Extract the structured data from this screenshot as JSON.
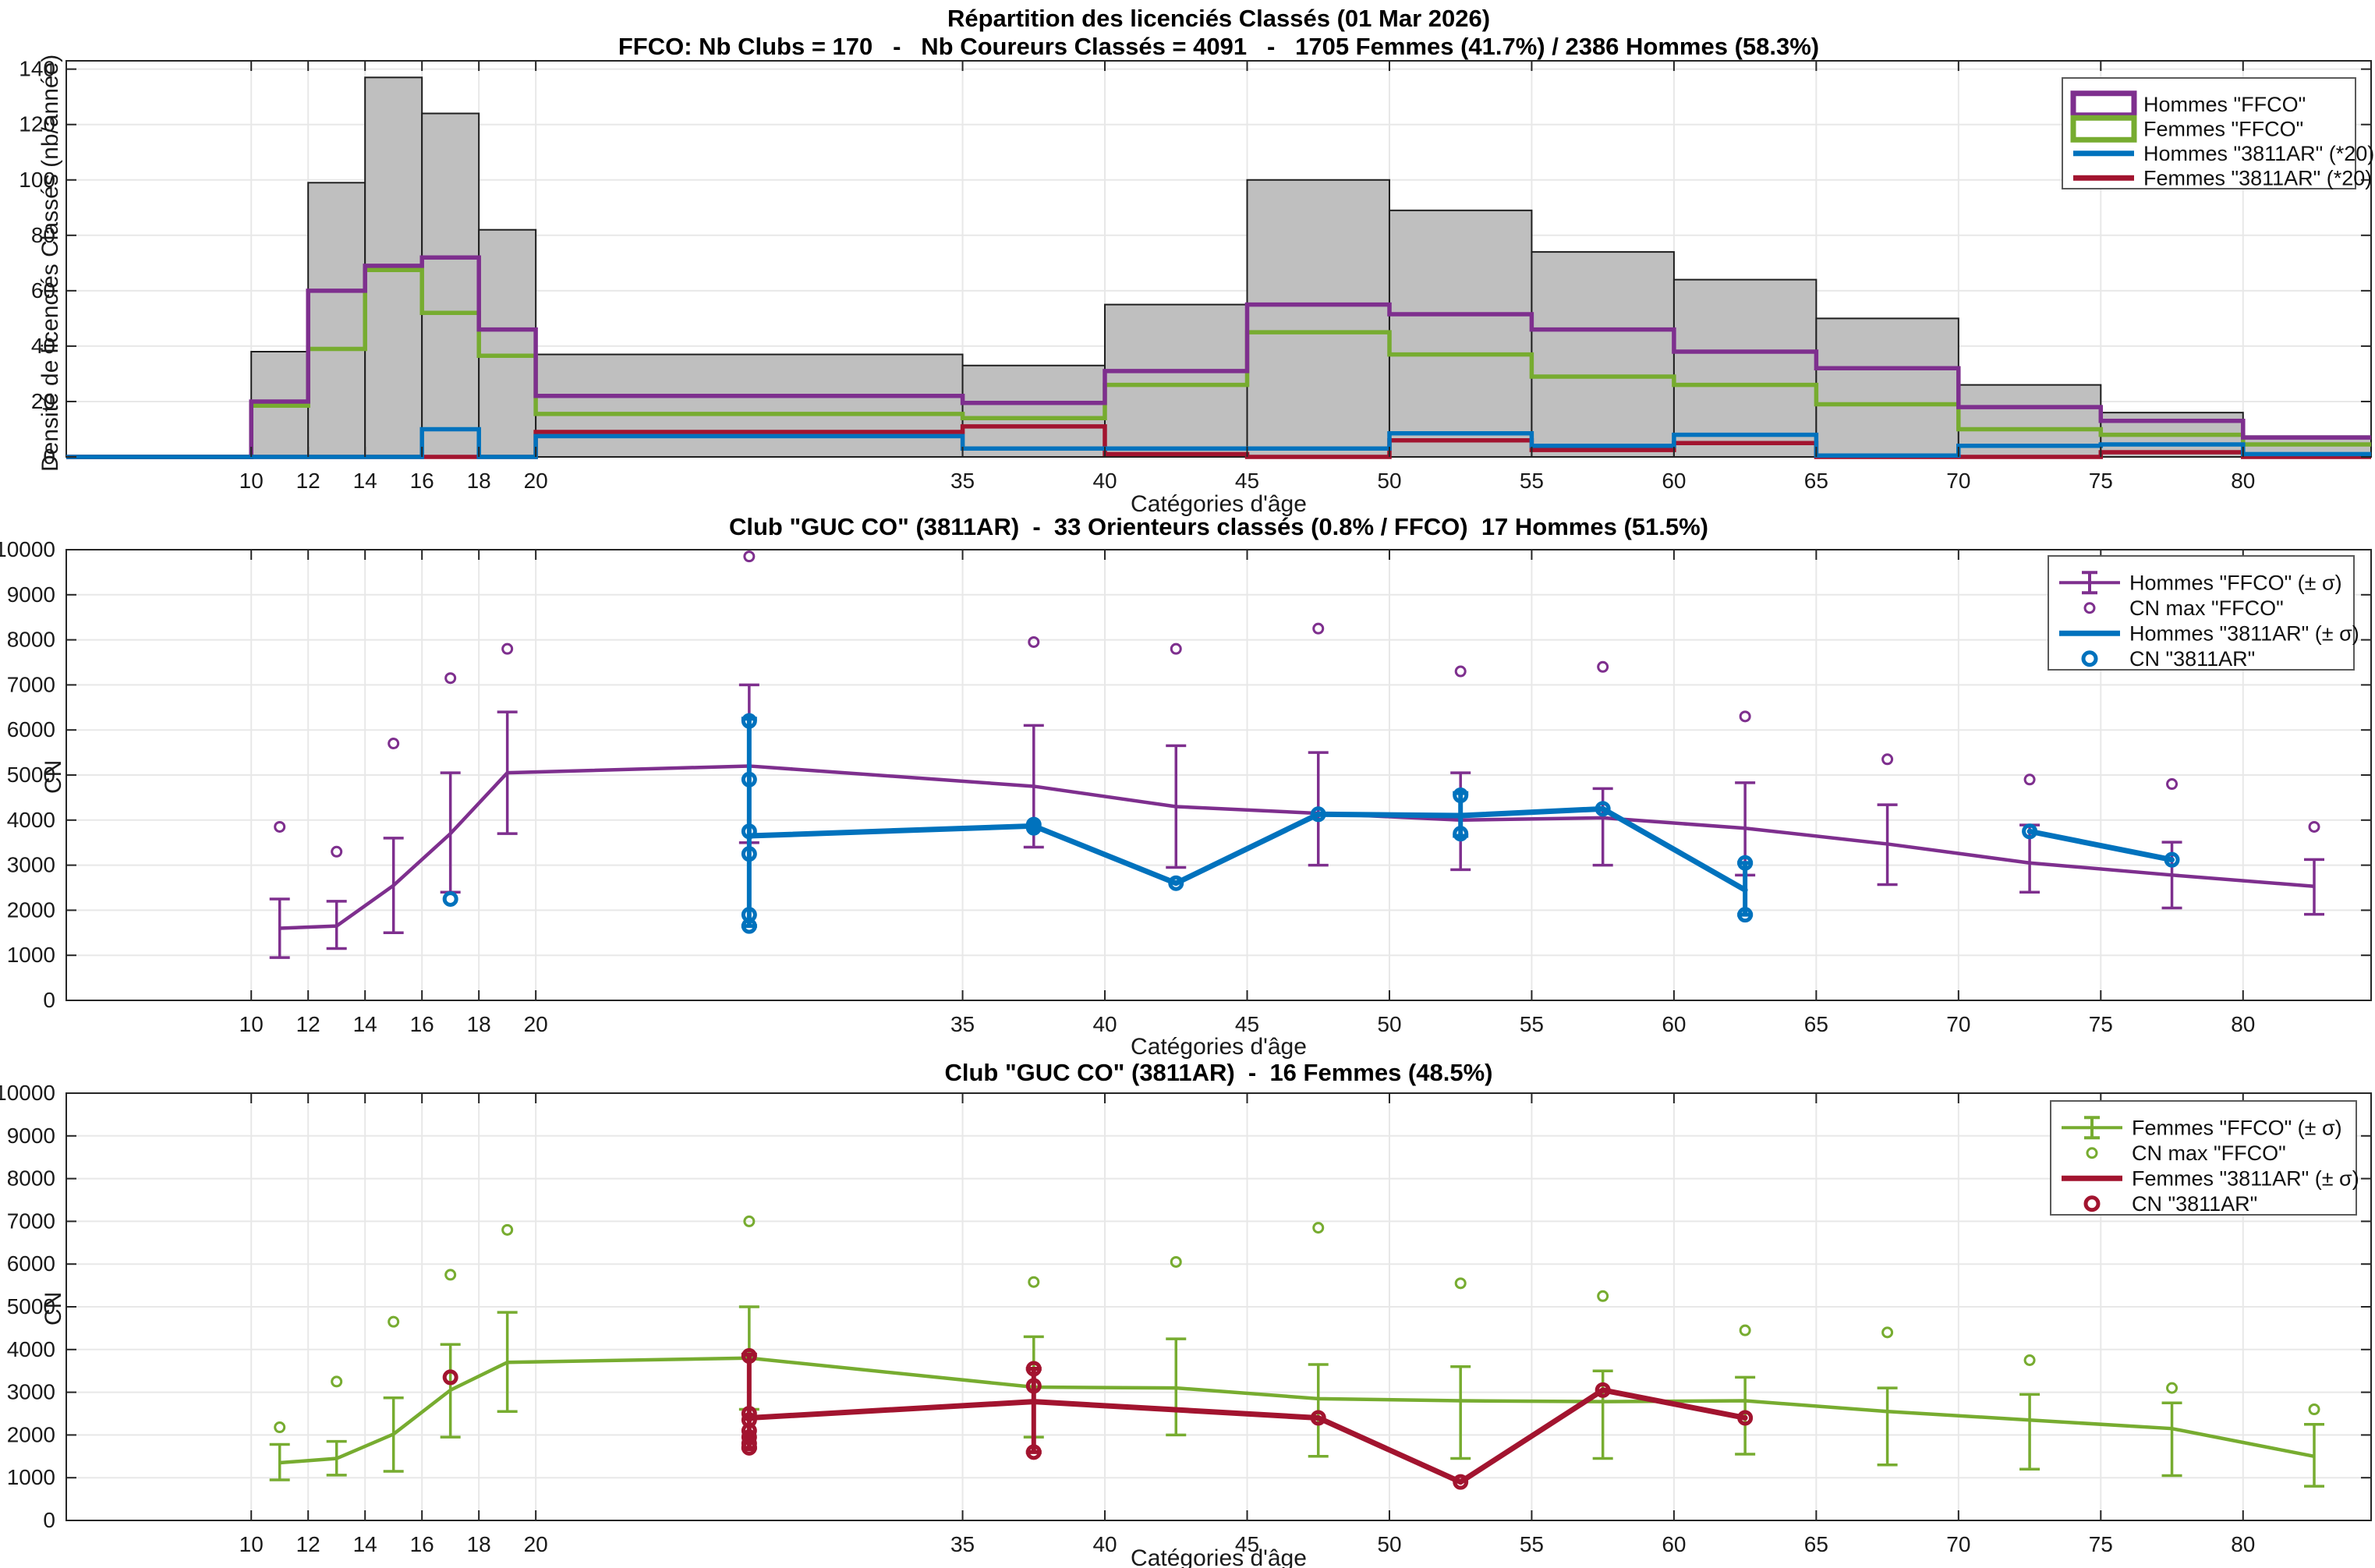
{
  "title": {
    "line1": "Répartition des licenciés Classés (01 Mar 2026)",
    "line2": "FFCO: Nb Clubs = 170   -   Nb Coureurs Classés = 4091   -   1705 Femmes (41.7%) / 2386 Hommes (58.3%)"
  },
  "colors": {
    "hommes_ffco": "#7E2F8E",
    "femmes_ffco": "#77AC30",
    "hommes_club": "#0072BD",
    "femmes_club": "#A2142F",
    "hist_fill": "#BFBFBF",
    "hist_edge": "#1F1F1F",
    "grid": "#E8E8E8",
    "axis": "#262626"
  },
  "xaxis": {
    "label": "Catégories d'âge",
    "ticks": [
      10,
      12,
      14,
      16,
      18,
      20,
      35,
      40,
      45,
      50,
      55,
      60,
      65,
      70,
      75,
      80
    ],
    "range": [
      3.5,
      84.5
    ]
  },
  "chart_data": [
    {
      "type": "bar",
      "title": "Répartition des licenciés Classés (01 Mar 2026)",
      "ylabel": "Densité de licenciés Classés (nb/année)",
      "ylim": [
        0,
        143
      ],
      "yticks": [
        0,
        20,
        40,
        60,
        80,
        100,
        120,
        140
      ],
      "bin_edges": [
        10,
        12,
        14,
        16,
        18,
        20,
        35,
        40,
        45,
        50,
        55,
        60,
        65,
        70,
        75,
        80,
        84.5
      ],
      "bars_total": [
        38,
        99,
        137,
        124,
        82,
        37,
        33,
        55,
        100,
        89,
        74,
        64,
        50,
        26,
        16,
        7.5
      ],
      "series": [
        {
          "name": "Femmes \"FFCO\"",
          "color": "femmes_ffco",
          "values": [
            18.5,
            39,
            67.5,
            52,
            36.5,
            15.5,
            14,
            26,
            45,
            37,
            29,
            26,
            19,
            10,
            8,
            4.5
          ]
        },
        {
          "name": "Hommes \"FFCO\"",
          "color": "hommes_ffco",
          "values": [
            20,
            60,
            69,
            72,
            46,
            22,
            19.5,
            31,
            55,
            51.5,
            46,
            38,
            32,
            18,
            13,
            7
          ]
        },
        {
          "name": "Femmes \"3811AR\" (*20)",
          "color": "femmes_club",
          "values": [
            0,
            0,
            0,
            0,
            0,
            9,
            11,
            1,
            0,
            6,
            2.5,
            5,
            0,
            0,
            1.7,
            0
          ]
        },
        {
          "name": "Hommes \"3811AR\" (*20)",
          "color": "hommes_club",
          "values": [
            0,
            0,
            0,
            10,
            0,
            7.5,
            3,
            3,
            3,
            8.5,
            4,
            8,
            0.5,
            4,
            4.5,
            1
          ]
        }
      ],
      "legend": [
        {
          "symbol": "rect",
          "color": "hommes_ffco",
          "label": "Hommes \"FFCO\""
        },
        {
          "symbol": "rect",
          "color": "femmes_ffco",
          "label": "Femmes \"FFCO\""
        },
        {
          "symbol": "line",
          "color": "hommes_club",
          "label": "Hommes \"3811AR\" (*20)"
        },
        {
          "symbol": "line",
          "color": "femmes_club",
          "label": "Femmes \"3811AR\" (*20)"
        }
      ]
    },
    {
      "type": "line",
      "title": "Club \"GUC CO\" (3811AR)  -  33 Orienteurs classés (0.8% / FFCO)  17 Hommes (51.5%)",
      "ylabel": "CN",
      "ylim": [
        0,
        10000
      ],
      "yticks": [
        0,
        1000,
        2000,
        3000,
        4000,
        5000,
        6000,
        7000,
        8000,
        9000,
        10000
      ],
      "x": [
        11,
        13,
        15,
        17,
        19,
        27.5,
        37.5,
        42.5,
        47.5,
        52.5,
        57.5,
        62.5,
        67.5,
        72.5,
        77.5,
        82.5
      ],
      "ffco": {
        "name": "Hommes \"FFCO\" (± σ)",
        "max_name": "CN max \"FFCO\"",
        "color": "hommes_ffco",
        "mean": [
          1600,
          1650,
          2550,
          3700,
          5050,
          5200,
          4750,
          4300,
          4150,
          4000,
          4050,
          3820,
          3470,
          3050,
          2780,
          2530
        ],
        "sigma_lo": [
          950,
          1150,
          1500,
          2400,
          3700,
          3500,
          3400,
          2950,
          3000,
          2900,
          3000,
          2780,
          2570,
          2400,
          2050,
          1910
        ],
        "sigma_hi": [
          2250,
          2200,
          3600,
          5050,
          6400,
          7000,
          6100,
          5650,
          5500,
          5050,
          4700,
          4830,
          4340,
          3890,
          3510,
          3125
        ],
        "max": [
          3850,
          3300,
          5700,
          7150,
          7800,
          9850,
          7950,
          7800,
          8250,
          7300,
          7400,
          6300,
          5350,
          4900,
          4800,
          3850
        ]
      },
      "club": {
        "name": "Hommes \"3811AR\" (± σ)",
        "points_name": "CN \"3811AR\"",
        "color": "hommes_club",
        "segments": [
          [
            [
              27.5,
              3650
            ],
            [
              37.5,
              3870
            ],
            [
              42.5,
              2600
            ],
            [
              47.5,
              4130
            ],
            [
              52.5,
              4100
            ],
            [
              57.5,
              4250
            ],
            [
              62.5,
              2450
            ]
          ],
          [
            [
              72.5,
              3750
            ],
            [
              77.5,
              3120
            ]
          ]
        ],
        "errors": [
          [
            27.5,
            1650,
            6250
          ],
          [
            52.5,
            3650,
            4600
          ],
          [
            62.5,
            1900,
            3050
          ]
        ],
        "points": [
          [
            17,
            [
              2250
            ]
          ],
          [
            27.5,
            [
              6200,
              4900,
              3750,
              3250,
              1900,
              1650
            ]
          ],
          [
            37.5,
            [
              3900,
              3830
            ]
          ],
          [
            42.5,
            [
              2600
            ]
          ],
          [
            47.5,
            [
              4130
            ]
          ],
          [
            52.5,
            [
              4550,
              3700
            ]
          ],
          [
            57.5,
            [
              4250
            ]
          ],
          [
            62.5,
            [
              3050,
              1900
            ]
          ],
          [
            72.5,
            [
              3750
            ]
          ],
          [
            77.5,
            [
              3120
            ]
          ]
        ]
      },
      "legend": [
        {
          "symbol": "errorbar",
          "color": "hommes_ffco",
          "label": "Hommes \"FFCO\" (± σ)"
        },
        {
          "symbol": "circle",
          "color": "hommes_ffco",
          "label": "CN max \"FFCO\""
        },
        {
          "symbol": "line",
          "color": "hommes_club",
          "label": "Hommes \"3811AR\" (± σ)"
        },
        {
          "symbol": "circle-bold",
          "color": "hommes_club",
          "label": "CN \"3811AR\""
        }
      ]
    },
    {
      "type": "line",
      "title": "Club \"GUC CO\" (3811AR)  -  16 Femmes (48.5%)",
      "ylabel": "CN",
      "ylim": [
        0,
        10000
      ],
      "yticks": [
        0,
        1000,
        2000,
        3000,
        4000,
        5000,
        6000,
        7000,
        8000,
        9000,
        10000
      ],
      "x": [
        11,
        13,
        15,
        17,
        19,
        27.5,
        37.5,
        42.5,
        47.5,
        52.5,
        57.5,
        62.5,
        67.5,
        72.5,
        77.5,
        82.5
      ],
      "ffco": {
        "name": "Femmes \"FFCO\" (± σ)",
        "max_name": "CN max \"FFCO\"",
        "color": "femmes_ffco",
        "mean": [
          1350,
          1450,
          2020,
          3050,
          3700,
          3800,
          3120,
          3100,
          2850,
          2800,
          2780,
          2800,
          2550,
          2350,
          2150,
          1500
        ],
        "sigma_lo": [
          950,
          1060,
          1150,
          1950,
          2550,
          2600,
          1950,
          2000,
          1500,
          1450,
          1450,
          1550,
          1300,
          1200,
          1050,
          800
        ],
        "sigma_hi": [
          1780,
          1850,
          2870,
          4120,
          4870,
          5000,
          4300,
          4250,
          3650,
          3600,
          3500,
          3350,
          3100,
          2950,
          2750,
          2250
        ],
        "max": [
          2180,
          3250,
          4650,
          5750,
          6800,
          7000,
          5580,
          6050,
          6850,
          5550,
          5250,
          4450,
          4400,
          3750,
          3100,
          2600
        ]
      },
      "club": {
        "name": "Femmes \"3811AR\" (± σ)",
        "points_name": "CN \"3811AR\"",
        "color": "femmes_club",
        "segments": [
          [
            [
              27.5,
              2400
            ],
            [
              37.5,
              2780
            ],
            [
              47.5,
              2400
            ],
            [
              52.5,
              900
            ],
            [
              57.5,
              3050
            ],
            [
              62.5,
              2400
            ]
          ]
        ],
        "errors": [
          [
            27.5,
            1700,
            3880
          ],
          [
            37.5,
            1600,
            3550
          ]
        ],
        "points": [
          [
            17,
            [
              3350
            ]
          ],
          [
            27.5,
            [
              3850,
              2500,
              2350,
              2100,
              1950,
              1800,
              1700
            ]
          ],
          [
            37.5,
            [
              3550,
              3150,
              1600
            ]
          ],
          [
            47.5,
            [
              2400
            ]
          ],
          [
            52.5,
            [
              900
            ]
          ],
          [
            57.5,
            [
              3050
            ]
          ],
          [
            62.5,
            [
              2400
            ]
          ]
        ]
      },
      "legend": [
        {
          "symbol": "errorbar",
          "color": "femmes_ffco",
          "label": "Femmes \"FFCO\" (± σ)"
        },
        {
          "symbol": "circle",
          "color": "femmes_ffco",
          "label": "CN max \"FFCO\""
        },
        {
          "symbol": "line",
          "color": "femmes_club",
          "label": "Femmes \"3811AR\" (± σ)"
        },
        {
          "symbol": "circle-bold",
          "color": "femmes_club",
          "label": "CN \"3811AR\""
        }
      ]
    }
  ]
}
